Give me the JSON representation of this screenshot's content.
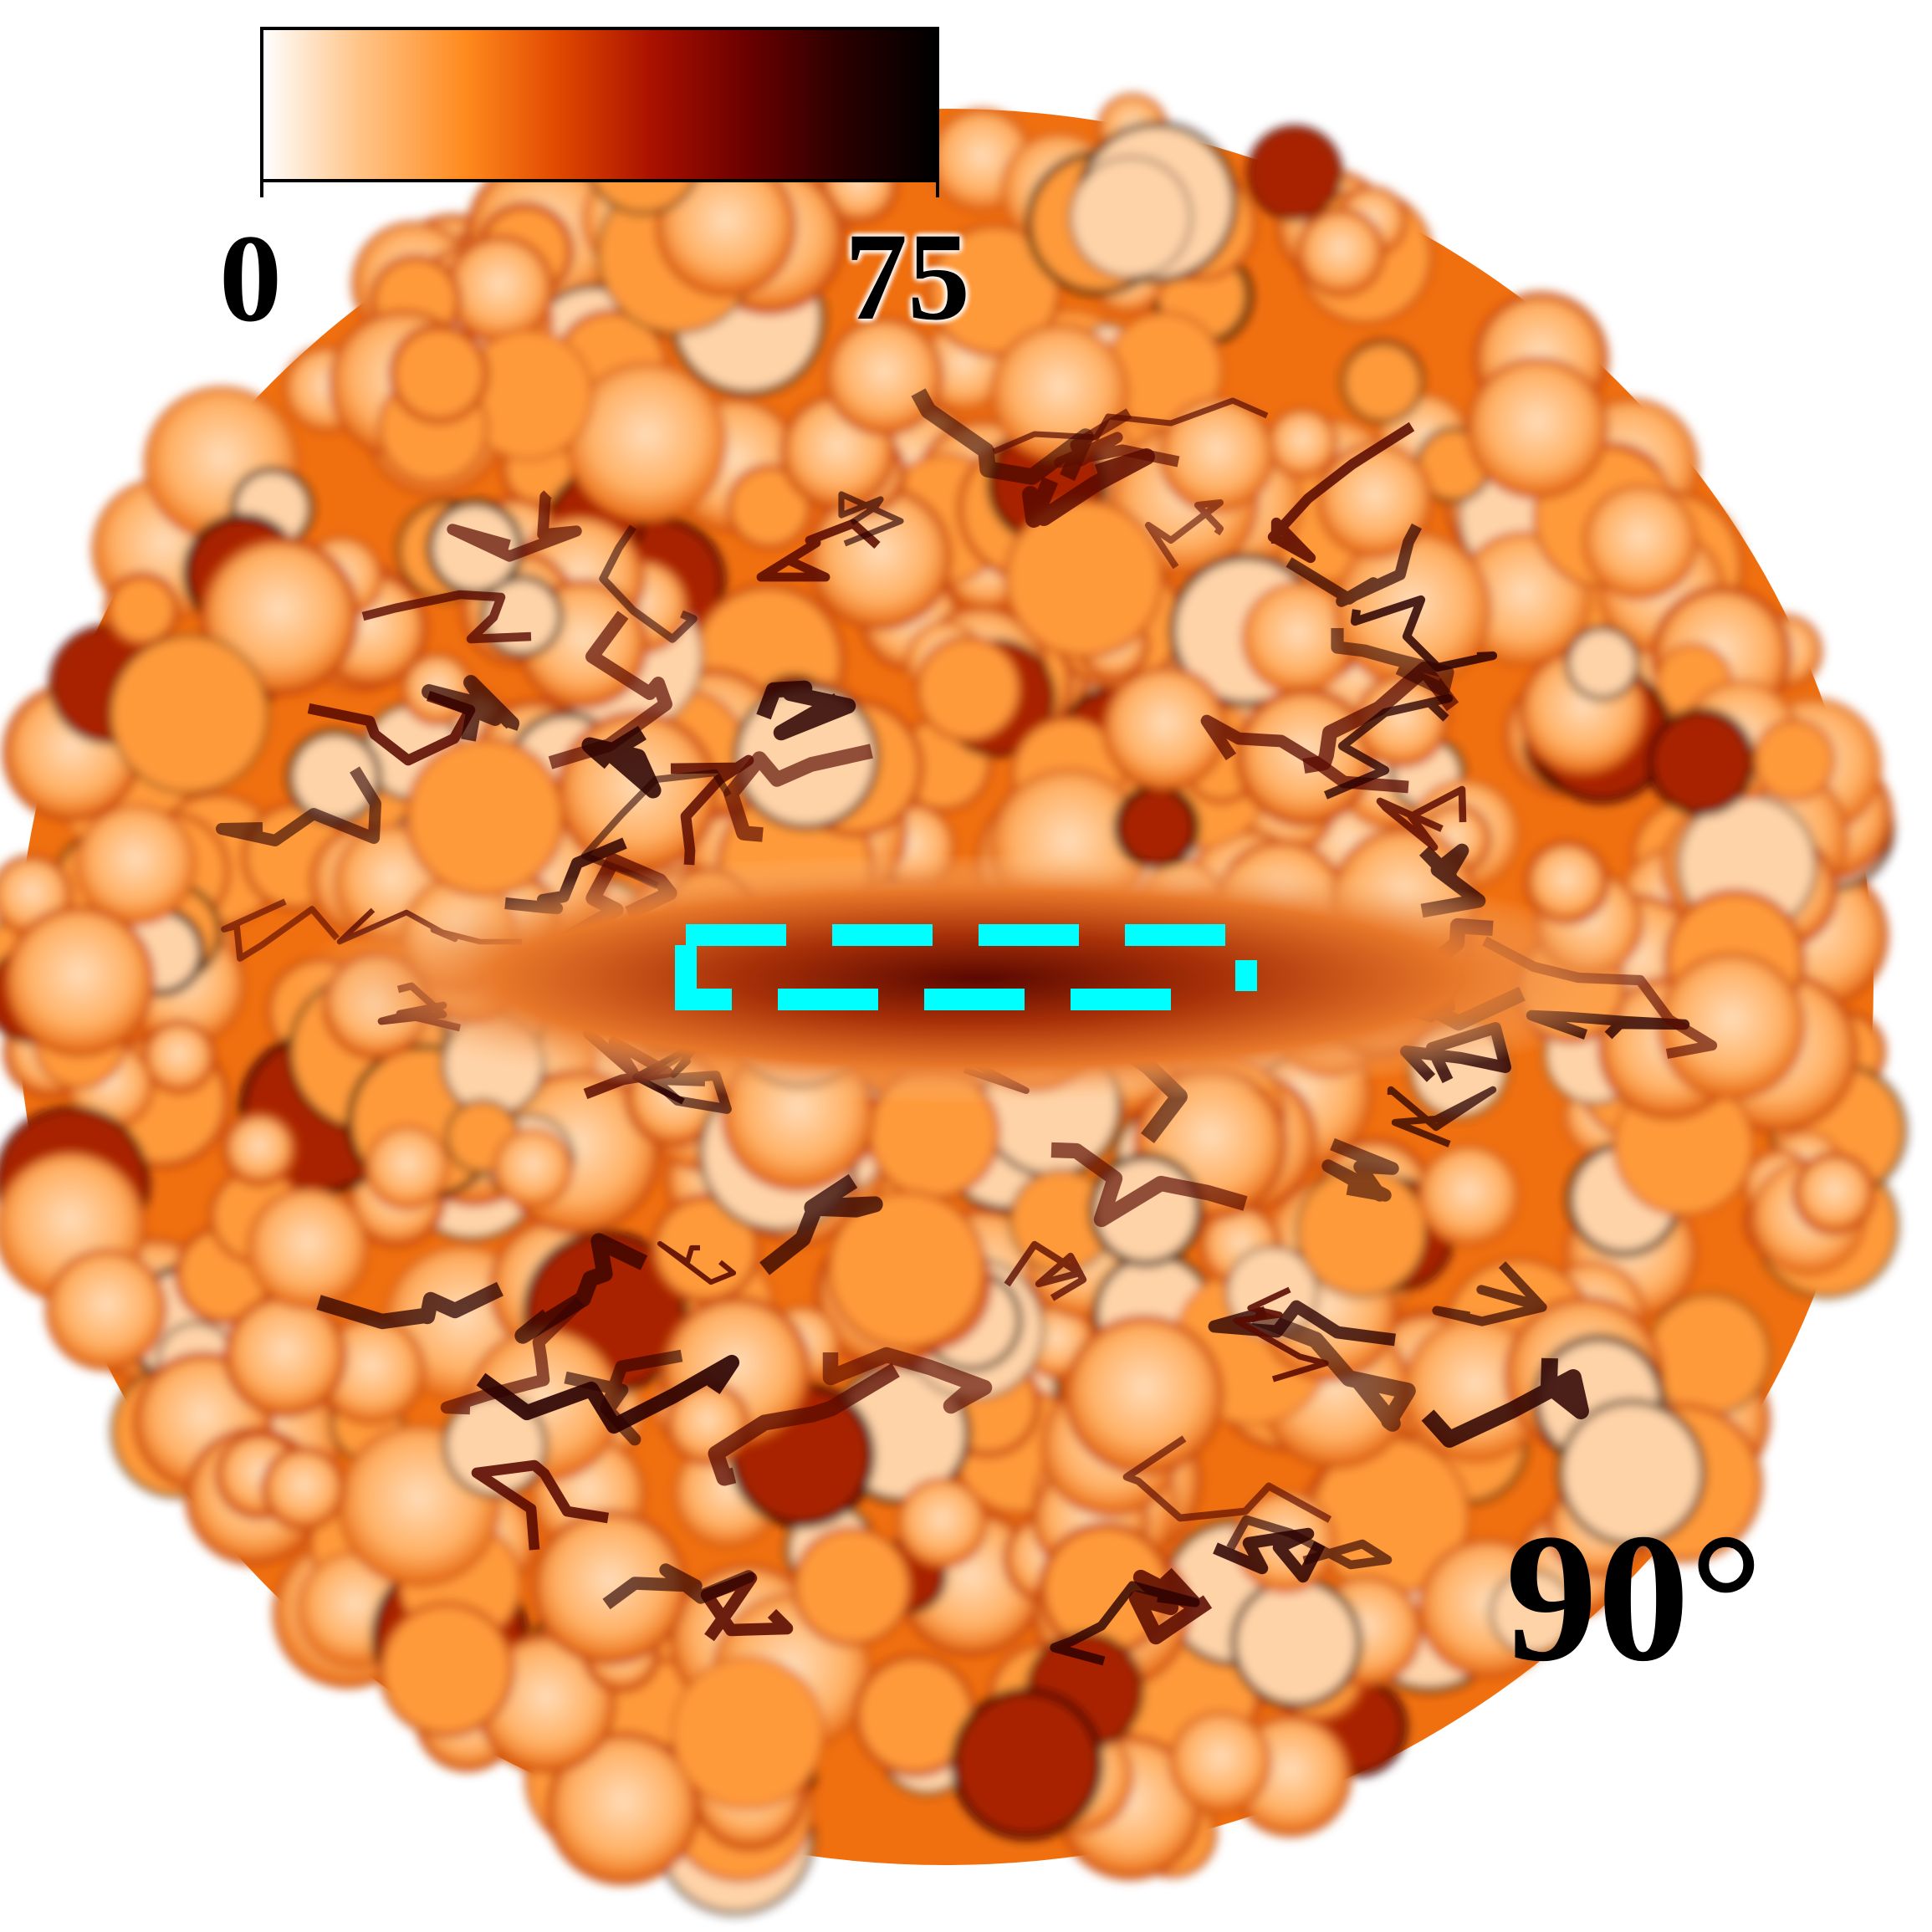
{
  "colorbar": {
    "min_label": "0",
    "max_label": "75",
    "colors": [
      "#ffffff",
      "#ffc58a",
      "#ff8a1e",
      "#e04800",
      "#a81000",
      "#6a0000",
      "#2a0000",
      "#000000"
    ]
  },
  "angle_label": "90°",
  "region_box_color": "#00ffff",
  "map_colors": {
    "light": "#ffd3a8",
    "mid": "#ff9a3a",
    "orange": "#f07010",
    "dark": "#a82000",
    "darkest": "#2a0000"
  }
}
